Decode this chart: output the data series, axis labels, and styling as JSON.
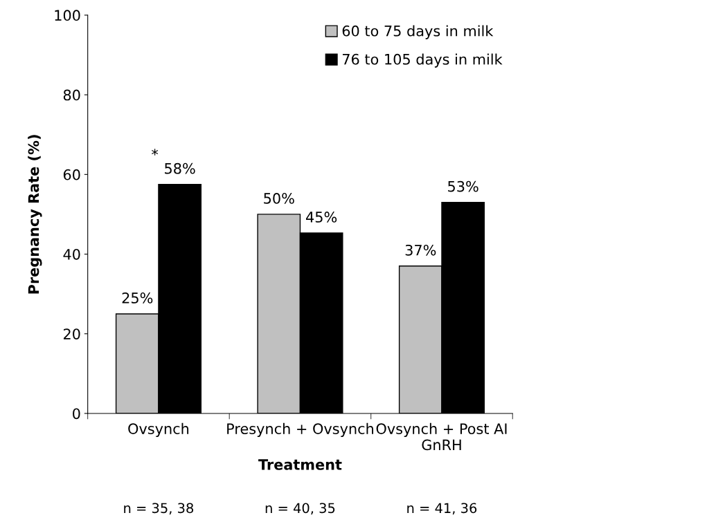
{
  "chart_data": {
    "type": "bar",
    "categories": [
      "Ovsynch",
      "Presynch + Ovsynch",
      "Ovsynch + Post AI\nGnRH"
    ],
    "series": [
      {
        "name": "60 to 75 days in milk",
        "color": "#c0c0c0",
        "values": [
          25,
          50,
          37
        ],
        "value_labels": [
          "25%",
          "50%",
          "37%"
        ]
      },
      {
        "name": "76 to 105 days in milk",
        "color": "#000000",
        "values": [
          57.5,
          45.3,
          53
        ],
        "value_labels": [
          "58%",
          "45%",
          "53%"
        ]
      }
    ],
    "xlabel": "Treatment",
    "ylabel": "Pregnancy Rate (%)",
    "ylim": [
      0,
      100
    ],
    "yticks": [
      0,
      20,
      40,
      60,
      80,
      100
    ],
    "annotations": [
      "*",
      "n = 35, 38",
      "n = 40, 35",
      "n = 41, 36"
    ],
    "legend": "top right",
    "grid": false
  }
}
